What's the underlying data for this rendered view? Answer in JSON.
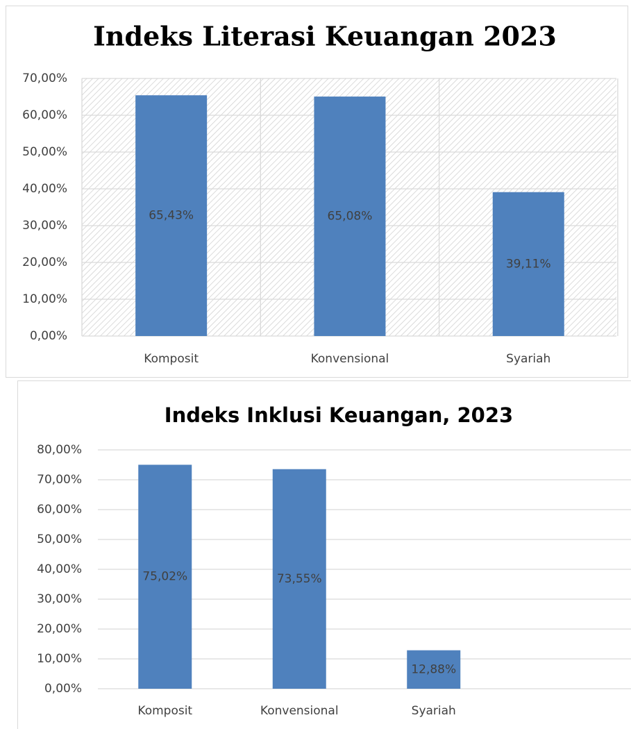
{
  "chart_data": [
    {
      "type": "bar",
      "title": "Indeks Literasi Keuangan 2023",
      "categories": [
        "Komposit",
        "Konvensional",
        "Syariah"
      ],
      "values": [
        65.43,
        65.08,
        39.11
      ],
      "value_labels": [
        "65,43%",
        "65,08%",
        "39,11%"
      ],
      "color": "#4f81bd",
      "ylim": [
        0,
        70
      ],
      "yticks": [
        {
          "value": 0,
          "label": "0,00%"
        },
        {
          "value": 10,
          "label": "10,00%"
        },
        {
          "value": 20,
          "label": "20,00%"
        },
        {
          "value": 30,
          "label": "30,00%"
        },
        {
          "value": 40,
          "label": "40,00%"
        },
        {
          "value": 50,
          "label": "50,00%"
        },
        {
          "value": 60,
          "label": "60,00%"
        },
        {
          "value": 70,
          "label": "70,00%"
        }
      ],
      "grid": true
    },
    {
      "type": "bar",
      "title": "Indeks Inklusi Keuangan, 2023",
      "categories": [
        "Komposit",
        "Konvensional",
        "Syariah"
      ],
      "values": [
        75.02,
        73.55,
        12.88
      ],
      "value_labels": [
        "75,02%",
        "73,55%",
        "12,88%"
      ],
      "color": "#4f81bd",
      "ylim": [
        0,
        80
      ],
      "yticks": [
        {
          "value": 0,
          "label": "0,00%"
        },
        {
          "value": 10,
          "label": "10,00%"
        },
        {
          "value": 20,
          "label": "20,00%"
        },
        {
          "value": 30,
          "label": "30,00%"
        },
        {
          "value": 40,
          "label": "40,00%"
        },
        {
          "value": 50,
          "label": "50,00%"
        },
        {
          "value": 60,
          "label": "60,00%"
        },
        {
          "value": 70,
          "label": "70,00%"
        },
        {
          "value": 80,
          "label": "80,00%"
        }
      ],
      "grid": true
    }
  ]
}
